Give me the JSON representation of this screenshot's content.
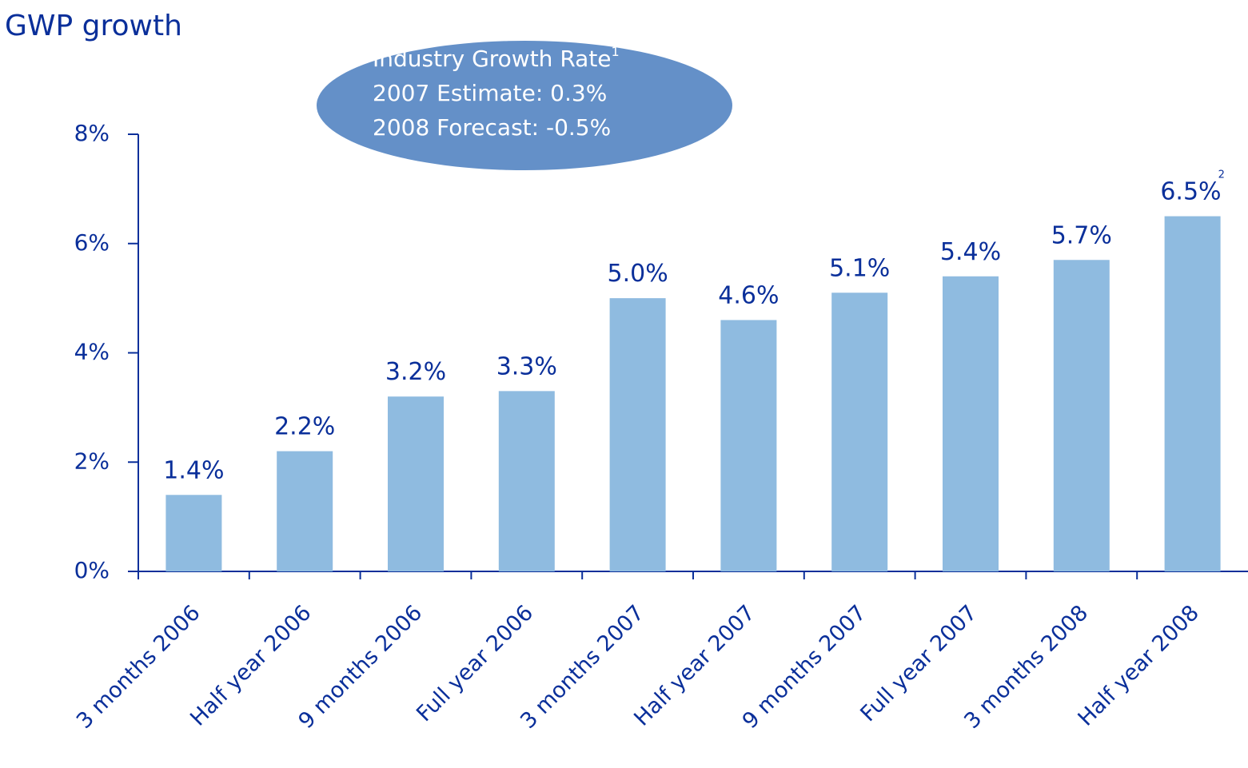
{
  "chart_data": {
    "type": "bar",
    "title": "GWP growth",
    "categories": [
      "3 months 2006",
      "Half year 2006",
      "9 months 2006",
      "Full year 2006",
      "3 months 2007",
      "Half year 2007",
      "9 months 2007",
      "Full year 2007",
      "3 months 2008",
      "Half year 2008"
    ],
    "values": [
      1.4,
      2.2,
      3.2,
      3.3,
      5.0,
      4.6,
      5.1,
      5.4,
      5.7,
      6.5
    ],
    "value_labels": [
      "1.4%",
      "2.2%",
      "3.2%",
      "3.3%",
      "5.0%",
      "4.6%",
      "5.1%",
      "5.4%",
      "5.7%",
      "6.5%"
    ],
    "value_note": "2",
    "color": "#8fbbe0",
    "ylim": [
      0,
      8
    ],
    "yticks": [
      {
        "value": 0,
        "label": "0%"
      },
      {
        "value": 2,
        "label": "2%"
      },
      {
        "value": 4,
        "label": "4%"
      },
      {
        "value": 6,
        "label": "6%"
      },
      {
        "value": 8,
        "label": "8%"
      }
    ],
    "annotation": [
      "Industry Growth Rate",
      "2007 Estimate: 0.3%",
      "2008 Forecast: -0.5%"
    ],
    "annotation_note": "1"
  }
}
